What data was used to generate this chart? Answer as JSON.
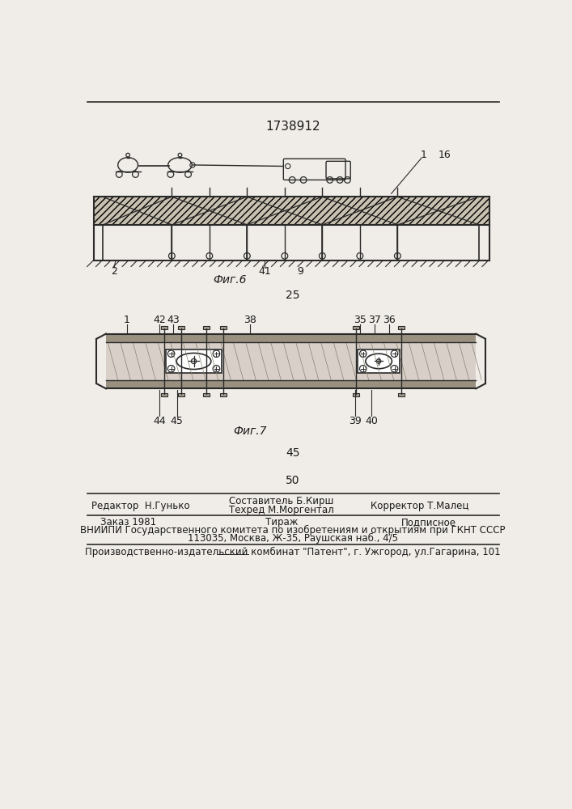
{
  "patent_number": "1738912",
  "fig6_label": "Фиг.6",
  "fig7_label": "Фиг.7",
  "number_25": "25",
  "number_45": "45",
  "number_50": "50",
  "footer_line1_col1": "Редактор  Н.Гунько",
  "footer_line1_col2": "Составитель Б.Кирш",
  "footer_line1_col2b": "Техред М.Моргентал",
  "footer_line1_col3": "Корректор Т.Малец",
  "footer_line2_col1": "Заказ 1981",
  "footer_line2_col2": "Тираж",
  "footer_line2_col3": "Подписное",
  "footer_line3": "ВНИИПИ Государственного комитета по изобретениям и открытиям при ГКНТ СССР",
  "footer_line4": "113035, Москва, Ж-35, Раушская наб., 4/5",
  "footer_bottom": "Производственно-издательский комбинат \"Патент\", г. Ужгород, ул.Гагарина, 101",
  "bg_color": "#f0ede8",
  "text_color": "#1a1a1a",
  "line_color": "#2a2a2a"
}
